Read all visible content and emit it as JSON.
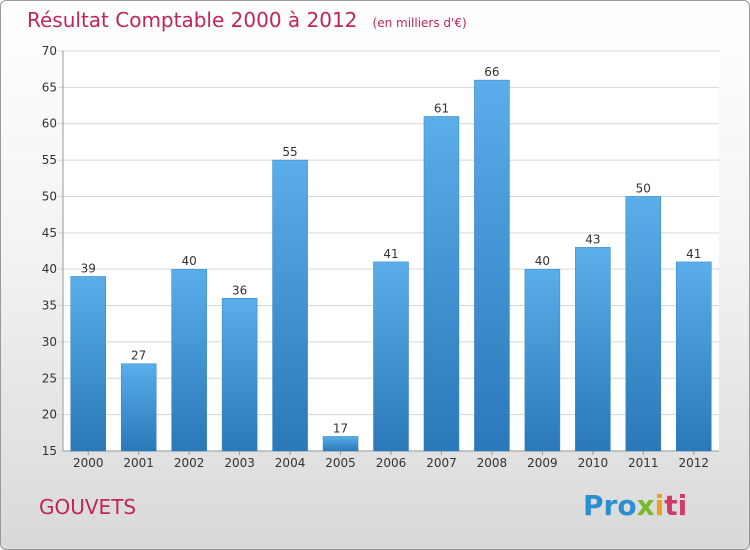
{
  "chart_data": {
    "type": "bar",
    "title": "Résultat Comptable 2000 à 2012",
    "subtitle": "(en milliers d'€)",
    "categories": [
      "2000",
      "2001",
      "2002",
      "2003",
      "2004",
      "2005",
      "2006",
      "2007",
      "2008",
      "2009",
      "2010",
      "2011",
      "2012"
    ],
    "values": [
      39,
      27,
      40,
      36,
      55,
      17,
      41,
      61,
      66,
      40,
      43,
      50,
      41
    ],
    "ylim": [
      15,
      70
    ],
    "yticks": [
      15,
      20,
      25,
      30,
      35,
      40,
      45,
      50,
      55,
      60,
      65,
      70
    ],
    "grid": true,
    "bar_color": "#3d92d2"
  },
  "location": "GOUVETS",
  "logo": {
    "p1": "Pro",
    "p2": "x",
    "p3": "i",
    "p4": "ti"
  }
}
